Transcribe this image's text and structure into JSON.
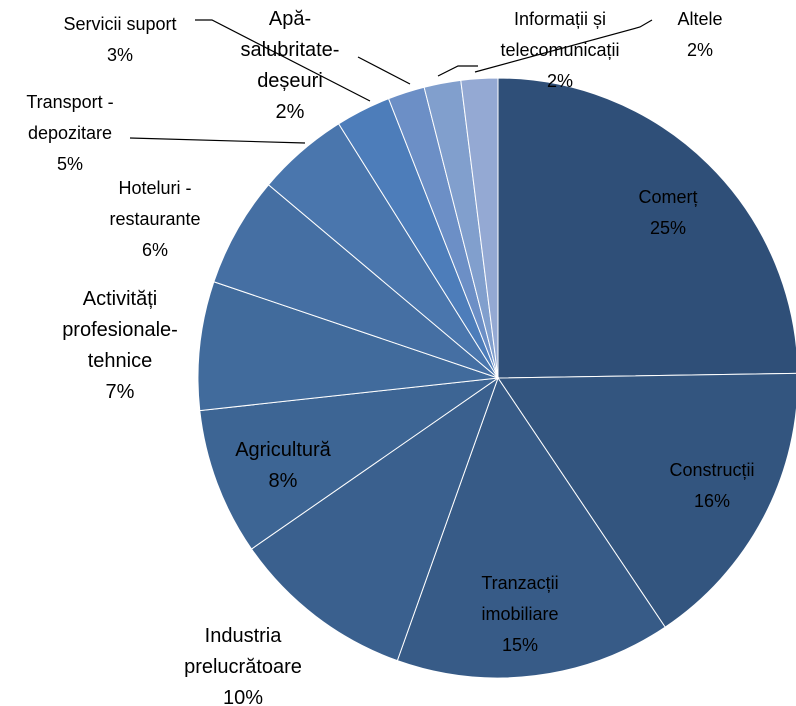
{
  "chart_data": {
    "type": "pie",
    "categories": [
      "Comerț",
      "Construcții",
      "Tranzacții imobiliare",
      "Industria prelucrătoare",
      "Agricultură",
      "Activități profesionale-tehnice",
      "Hoteluri - restaurante",
      "Transport - depozitare",
      "Servicii suport",
      "Apă-salubritate-deșeuri",
      "Informații și telecomunicații",
      "Altele"
    ],
    "values": [
      25,
      16,
      15,
      10,
      8,
      7,
      6,
      5,
      3,
      2,
      2,
      2
    ],
    "value_labels": [
      "25%",
      "16%",
      "15%",
      "10%",
      "8%",
      "7%",
      "6%",
      "5%",
      "3%",
      "2%",
      "2%",
      "2%"
    ],
    "colors": [
      "#2f4f78",
      "#33557f",
      "#375b87",
      "#3a608e",
      "#3d6594",
      "#416b9c",
      "#456fa3",
      "#4a76ad",
      "#4d7dba",
      "#6c8fc6",
      "#819fcd",
      "#94a9d3"
    ]
  }
}
